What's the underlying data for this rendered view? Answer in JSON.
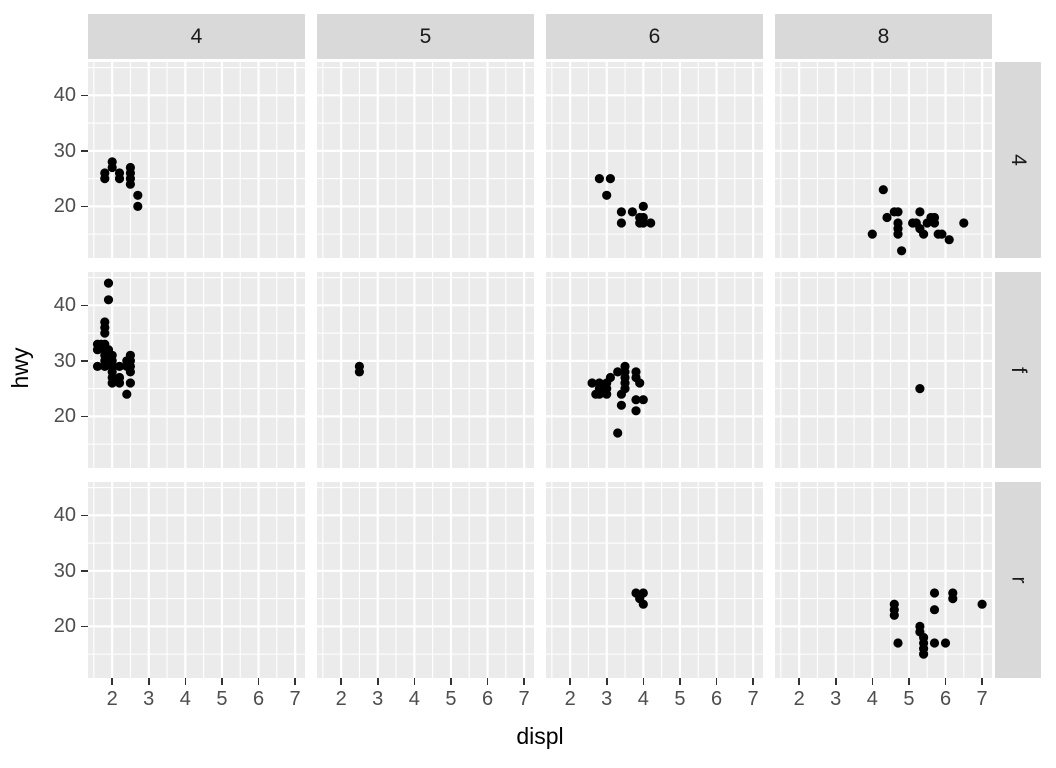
{
  "chart_data": {
    "type": "scatter",
    "title": "",
    "xlabel": "displ",
    "ylabel": "hwy",
    "legend": "none",
    "grid": "on",
    "facet_col_labels": [
      "4",
      "5",
      "6",
      "8"
    ],
    "facet_row_labels": [
      "4",
      "f",
      "r"
    ],
    "x_ticks": [
      2,
      3,
      4,
      5,
      6,
      7
    ],
    "y_ticks": [
      20,
      30,
      40
    ],
    "x_minor_gridlines": [
      1.5,
      2.5,
      3.5,
      4.5,
      5.5,
      6.5
    ],
    "y_minor_gridlines": [
      15,
      25,
      35,
      45
    ],
    "x_domain": [
      1.34,
      7.27
    ],
    "y_domain": [
      10.7,
      46.0
    ],
    "panels": [
      {
        "row": "4",
        "col": "4",
        "points": [
          [
            1.8,
            26
          ],
          [
            1.8,
            25
          ],
          [
            2.0,
            28
          ],
          [
            2.0,
            27
          ],
          [
            2.2,
            26
          ],
          [
            2.2,
            25
          ],
          [
            2.5,
            27
          ],
          [
            2.5,
            26
          ],
          [
            2.5,
            25
          ],
          [
            2.5,
            24
          ],
          [
            2.7,
            22
          ],
          [
            2.7,
            20
          ]
        ]
      },
      {
        "row": "4",
        "col": "5",
        "points": []
      },
      {
        "row": "4",
        "col": "6",
        "points": [
          [
            2.8,
            25
          ],
          [
            3.1,
            25
          ],
          [
            3.0,
            22
          ],
          [
            3.4,
            19
          ],
          [
            3.4,
            17
          ],
          [
            3.7,
            19
          ],
          [
            3.9,
            18
          ],
          [
            3.9,
            17
          ],
          [
            4.0,
            20
          ],
          [
            4.0,
            18
          ],
          [
            4.0,
            17
          ],
          [
            4.2,
            17
          ]
        ]
      },
      {
        "row": "4",
        "col": "8",
        "points": [
          [
            4.0,
            15
          ],
          [
            4.3,
            23
          ],
          [
            4.4,
            18
          ],
          [
            4.6,
            19
          ],
          [
            4.7,
            19
          ],
          [
            4.7,
            17
          ],
          [
            4.7,
            16
          ],
          [
            4.7,
            15
          ],
          [
            4.8,
            12
          ],
          [
            5.1,
            17
          ],
          [
            5.2,
            17
          ],
          [
            5.3,
            19
          ],
          [
            5.3,
            16
          ],
          [
            5.4,
            15
          ],
          [
            5.5,
            17
          ],
          [
            5.6,
            18
          ],
          [
            5.7,
            18
          ],
          [
            5.7,
            17
          ],
          [
            5.8,
            15
          ],
          [
            5.9,
            15
          ],
          [
            6.1,
            14
          ],
          [
            6.5,
            17
          ]
        ]
      },
      {
        "row": "f",
        "col": "4",
        "points": [
          [
            1.9,
            44
          ],
          [
            1.9,
            41
          ],
          [
            1.8,
            37
          ],
          [
            1.8,
            36
          ],
          [
            1.8,
            35
          ],
          [
            1.7,
            33
          ],
          [
            1.6,
            33
          ],
          [
            1.6,
            32
          ],
          [
            1.6,
            29
          ],
          [
            1.8,
            33
          ],
          [
            1.8,
            32
          ],
          [
            1.8,
            31
          ],
          [
            1.8,
            30
          ],
          [
            1.8,
            29
          ],
          [
            1.9,
            32
          ],
          [
            2.0,
            31
          ],
          [
            2.0,
            30
          ],
          [
            2.0,
            29
          ],
          [
            2.0,
            28
          ],
          [
            2.0,
            27
          ],
          [
            2.0,
            26
          ],
          [
            2.2,
            29
          ],
          [
            2.2,
            27
          ],
          [
            2.2,
            26
          ],
          [
            2.4,
            30
          ],
          [
            2.4,
            29
          ],
          [
            2.5,
            31
          ],
          [
            2.5,
            30
          ],
          [
            2.5,
            29
          ],
          [
            2.5,
            28
          ],
          [
            2.5,
            26
          ],
          [
            2.4,
            24
          ]
        ]
      },
      {
        "row": "f",
        "col": "5",
        "points": [
          [
            2.5,
            29
          ],
          [
            2.5,
            28
          ]
        ]
      },
      {
        "row": "f",
        "col": "6",
        "points": [
          [
            2.6,
            26
          ],
          [
            2.7,
            24
          ],
          [
            2.8,
            26
          ],
          [
            2.8,
            25
          ],
          [
            2.8,
            24
          ],
          [
            3.0,
            26
          ],
          [
            3.0,
            25
          ],
          [
            3.0,
            24
          ],
          [
            3.1,
            27
          ],
          [
            3.3,
            28
          ],
          [
            3.5,
            29
          ],
          [
            3.5,
            28
          ],
          [
            3.5,
            27
          ],
          [
            3.5,
            26
          ],
          [
            3.5,
            25
          ],
          [
            3.8,
            28
          ],
          [
            3.8,
            27
          ],
          [
            3.9,
            26
          ],
          [
            3.4,
            24
          ],
          [
            3.4,
            22
          ],
          [
            3.8,
            23
          ],
          [
            4.0,
            23
          ],
          [
            3.8,
            21
          ],
          [
            3.3,
            17
          ]
        ]
      },
      {
        "row": "f",
        "col": "8",
        "points": [
          [
            5.3,
            25
          ]
        ]
      },
      {
        "row": "r",
        "col": "4",
        "points": []
      },
      {
        "row": "r",
        "col": "5",
        "points": []
      },
      {
        "row": "r",
        "col": "6",
        "points": [
          [
            3.8,
            26
          ],
          [
            4.0,
            26
          ],
          [
            3.9,
            25
          ],
          [
            4.0,
            24
          ]
        ]
      },
      {
        "row": "r",
        "col": "8",
        "points": [
          [
            4.6,
            24
          ],
          [
            4.6,
            23
          ],
          [
            4.6,
            22
          ],
          [
            4.7,
            17
          ],
          [
            5.3,
            20
          ],
          [
            5.3,
            19
          ],
          [
            5.4,
            18
          ],
          [
            5.4,
            17
          ],
          [
            5.4,
            16
          ],
          [
            5.4,
            15
          ],
          [
            5.7,
            26
          ],
          [
            5.7,
            23
          ],
          [
            5.7,
            17
          ],
          [
            6.0,
            17
          ],
          [
            6.2,
            26
          ],
          [
            6.2,
            25
          ],
          [
            7.0,
            24
          ]
        ]
      }
    ]
  },
  "colors": {
    "background": "#ffffff",
    "panel_bg": "#ebebeb",
    "strip_bg": "#d9d9d9",
    "gridline": "#ffffff",
    "point": "#000000",
    "tick_mark": "#333333",
    "tick_label": "#4d4d4d",
    "strip_label": "#1a1a1a",
    "axis_title": "#000000"
  }
}
